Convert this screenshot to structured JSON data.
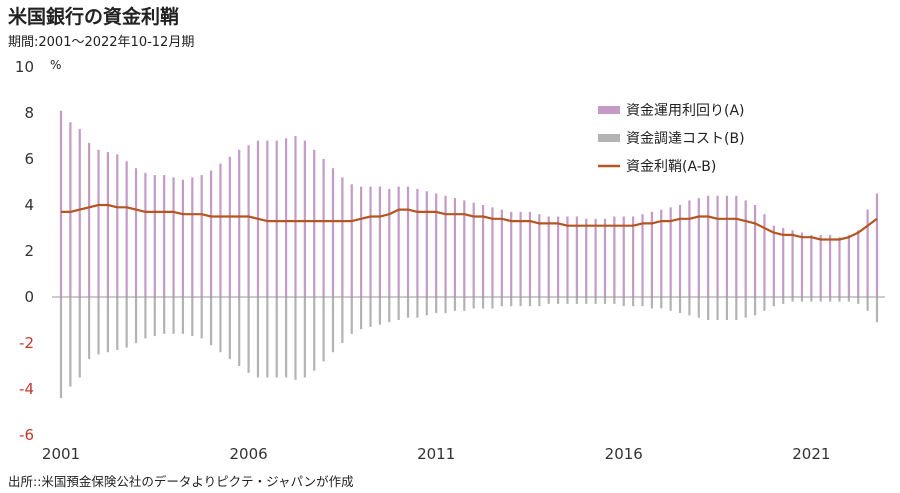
{
  "header": {
    "title": "米国銀行の資金利鞘",
    "subtitle": "期間:2001～2022年10-12月期",
    "unit": "%"
  },
  "source": "出所::米国預金保険公社のデータよりピクテ・ジャパンが作成",
  "chart_data": {
    "type": "bar+line",
    "title": "米国銀行の資金利鞘",
    "subtitle": "期間:2001～2022年10-12月期",
    "ylabel": "%",
    "ylim": [
      -6,
      10
    ],
    "yticks": [
      10,
      8,
      6,
      4,
      2,
      0,
      -2,
      -4,
      -6
    ],
    "xticks": [
      "2001",
      "2006",
      "2011",
      "2016",
      "2021"
    ],
    "x_start": "2001Q1",
    "x_end": "2022Q4",
    "legend_position": "top-right",
    "colors": {
      "A": "#c49ac6",
      "B": "#b3b3b3",
      "margin": "#b5551f",
      "negative_tick": "#c0392b"
    },
    "series": [
      {
        "name": "資金運用利回り(A)",
        "type": "bar",
        "values": [
          8.1,
          7.6,
          7.3,
          6.7,
          6.4,
          6.3,
          6.2,
          5.9,
          5.6,
          5.4,
          5.3,
          5.3,
          5.2,
          5.1,
          5.2,
          5.3,
          5.5,
          5.8,
          6.1,
          6.4,
          6.6,
          6.8,
          6.8,
          6.8,
          6.9,
          7.0,
          6.8,
          6.4,
          6.0,
          5.6,
          5.2,
          4.9,
          4.8,
          4.8,
          4.8,
          4.7,
          4.8,
          4.8,
          4.7,
          4.6,
          4.5,
          4.4,
          4.3,
          4.2,
          4.1,
          4.0,
          3.9,
          3.8,
          3.7,
          3.7,
          3.7,
          3.6,
          3.5,
          3.5,
          3.5,
          3.5,
          3.4,
          3.4,
          3.4,
          3.5,
          3.5,
          3.5,
          3.6,
          3.7,
          3.8,
          3.9,
          4.0,
          4.2,
          4.3,
          4.4,
          4.4,
          4.4,
          4.4,
          4.2,
          4.0,
          3.6,
          3.1,
          3.0,
          2.9,
          2.8,
          2.7,
          2.7,
          2.7,
          2.6,
          2.7,
          2.9,
          3.8,
          4.5
        ]
      },
      {
        "name": "資金調達コスト(B)",
        "type": "bar",
        "values": [
          -4.4,
          -3.9,
          -3.5,
          -2.7,
          -2.5,
          -2.4,
          -2.3,
          -2.2,
          -2.0,
          -1.8,
          -1.7,
          -1.6,
          -1.6,
          -1.6,
          -1.7,
          -1.8,
          -2.1,
          -2.4,
          -2.7,
          -3.0,
          -3.3,
          -3.5,
          -3.5,
          -3.5,
          -3.5,
          -3.6,
          -3.5,
          -3.2,
          -2.8,
          -2.4,
          -2.0,
          -1.6,
          -1.4,
          -1.3,
          -1.2,
          -1.1,
          -1.0,
          -0.9,
          -0.9,
          -0.8,
          -0.7,
          -0.7,
          -0.6,
          -0.6,
          -0.5,
          -0.5,
          -0.5,
          -0.4,
          -0.4,
          -0.4,
          -0.4,
          -0.4,
          -0.3,
          -0.3,
          -0.3,
          -0.3,
          -0.3,
          -0.3,
          -0.3,
          -0.3,
          -0.4,
          -0.4,
          -0.4,
          -0.5,
          -0.5,
          -0.6,
          -0.7,
          -0.8,
          -0.9,
          -1.0,
          -1.0,
          -1.0,
          -1.0,
          -0.9,
          -0.8,
          -0.6,
          -0.4,
          -0.3,
          -0.2,
          -0.2,
          -0.2,
          -0.2,
          -0.2,
          -0.2,
          -0.2,
          -0.3,
          -0.6,
          -1.1
        ]
      },
      {
        "name": "資金利鞘(A-B)",
        "type": "line",
        "values": [
          3.7,
          3.7,
          3.8,
          3.9,
          4.0,
          4.0,
          3.9,
          3.9,
          3.8,
          3.7,
          3.7,
          3.7,
          3.7,
          3.6,
          3.6,
          3.6,
          3.5,
          3.5,
          3.5,
          3.5,
          3.5,
          3.4,
          3.3,
          3.3,
          3.3,
          3.3,
          3.3,
          3.3,
          3.3,
          3.3,
          3.3,
          3.3,
          3.4,
          3.5,
          3.5,
          3.6,
          3.8,
          3.8,
          3.7,
          3.7,
          3.7,
          3.6,
          3.6,
          3.6,
          3.5,
          3.5,
          3.4,
          3.4,
          3.3,
          3.3,
          3.3,
          3.2,
          3.2,
          3.2,
          3.1,
          3.1,
          3.1,
          3.1,
          3.1,
          3.1,
          3.1,
          3.1,
          3.2,
          3.2,
          3.3,
          3.3,
          3.4,
          3.4,
          3.5,
          3.5,
          3.4,
          3.4,
          3.4,
          3.3,
          3.2,
          3.0,
          2.8,
          2.7,
          2.7,
          2.6,
          2.6,
          2.5,
          2.5,
          2.5,
          2.6,
          2.8,
          3.1,
          3.4
        ]
      }
    ]
  }
}
